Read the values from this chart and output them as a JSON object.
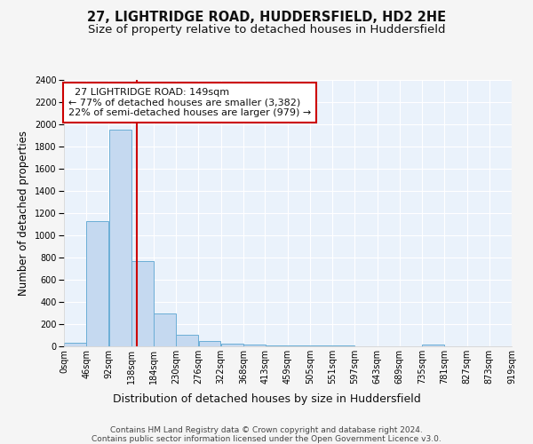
{
  "title1": "27, LIGHTRIDGE ROAD, HUDDERSFIELD, HD2 2HE",
  "title2": "Size of property relative to detached houses in Huddersfield",
  "xlabel": "Distribution of detached houses by size in Huddersfield",
  "ylabel": "Number of detached properties",
  "bin_edges": [
    0,
    46,
    92,
    138,
    184,
    230,
    276,
    322,
    368,
    413,
    459,
    505,
    551,
    597,
    643,
    689,
    735,
    781,
    827,
    873,
    919
  ],
  "bar_heights": [
    35,
    1130,
    1950,
    770,
    295,
    105,
    45,
    25,
    15,
    10,
    5,
    5,
    5,
    3,
    3,
    3,
    20,
    3,
    3,
    3
  ],
  "bar_color": "#c5d9f0",
  "bar_edge_color": "#6baed6",
  "red_line_x": 149,
  "red_line_color": "#cc0000",
  "ylim": [
    0,
    2400
  ],
  "yticks": [
    0,
    200,
    400,
    600,
    800,
    1000,
    1200,
    1400,
    1600,
    1800,
    2000,
    2200,
    2400
  ],
  "tick_labels": [
    "0sqm",
    "46sqm",
    "92sqm",
    "138sqm",
    "184sqm",
    "230sqm",
    "276sqm",
    "322sqm",
    "368sqm",
    "413sqm",
    "459sqm",
    "505sqm",
    "551sqm",
    "597sqm",
    "643sqm",
    "689sqm",
    "735sqm",
    "781sqm",
    "827sqm",
    "873sqm",
    "919sqm"
  ],
  "annotation_text": "  27 LIGHTRIDGE ROAD: 149sqm\n← 77% of detached houses are smaller (3,382)\n22% of semi-detached houses are larger (979) →",
  "annotation_box_color": "#ffffff",
  "annotation_box_edge": "#cc0000",
  "footer_text": "Contains HM Land Registry data © Crown copyright and database right 2024.\nContains public sector information licensed under the Open Government Licence v3.0.",
  "bg_color": "#eaf2fb",
  "grid_color": "#ffffff",
  "title1_fontsize": 10.5,
  "title2_fontsize": 9.5,
  "xlabel_fontsize": 9,
  "ylabel_fontsize": 8.5,
  "tick_fontsize": 7,
  "annot_fontsize": 8,
  "footer_fontsize": 6.5
}
